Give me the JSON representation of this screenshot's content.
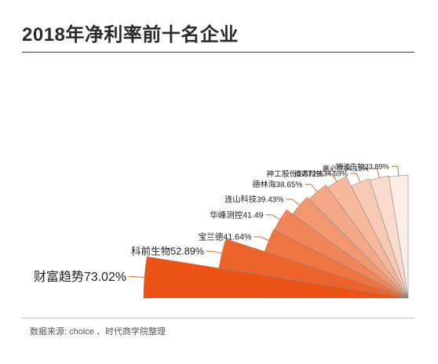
{
  "title": "2018年净利率前十名企业",
  "source": "数据来源: choice 、时代商学院整理",
  "chart_data": {
    "type": "pie",
    "subtype": "quarter-rose",
    "title": "2018年净利率前十名企业",
    "unit": "%",
    "items": [
      {
        "name": "财富趋势",
        "value": 73.02,
        "label": "财富趋势73.02%",
        "color": "#ea5313"
      },
      {
        "name": "科前生物",
        "value": 52.89,
        "label": "科前生物52.89%",
        "color": "#ec6429"
      },
      {
        "name": "宝兰德",
        "value": 41.64,
        "label": "宝兰德41.64%",
        "color": "#ee7440"
      },
      {
        "name": "华峰测控",
        "value": 41.49,
        "label": "华峰测控41.49",
        "color": "#f08657"
      },
      {
        "name": "连山科技",
        "value": 39.43,
        "label": "连山科技39.43%",
        "color": "#f2976e"
      },
      {
        "name": "德林海",
        "value": 38.65,
        "label": "德林海38.65%",
        "color": "#f4a886"
      },
      {
        "name": "神工股份",
        "value": 37.72,
        "label": "神工股份37.72%",
        "color": "#f6b99d"
      },
      {
        "name": "道通科技",
        "value": 34.69,
        "label": "道通科技34.69%",
        "color": "#f8cab5"
      },
      {
        "name": "嘉必优",
        "value": 34.19,
        "label": "嘉必优34.19%",
        "color": "#fadbcd"
      },
      {
        "name": "锦波生物",
        "value": 33.89,
        "label": "锦波生物33.89%",
        "color": "#fcede5"
      }
    ]
  }
}
